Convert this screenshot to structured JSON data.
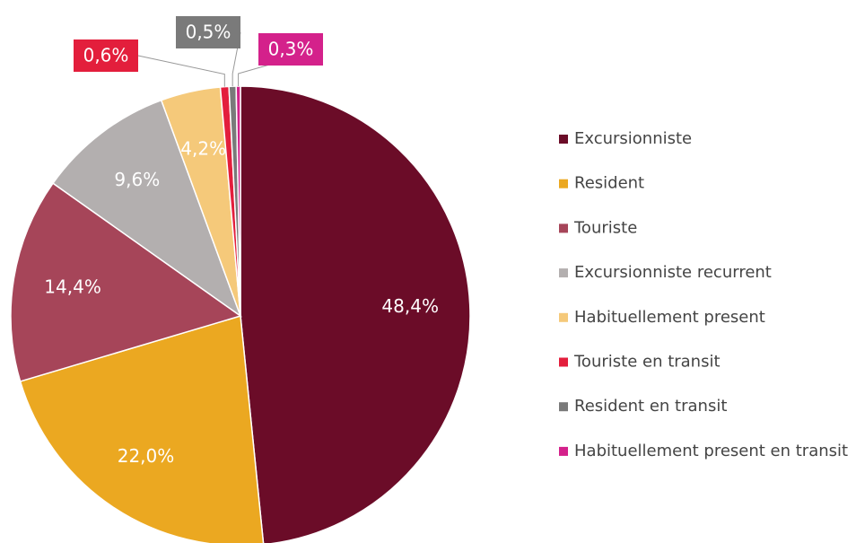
{
  "chart_data": {
    "type": "pie",
    "categories": [
      "Excursionniste",
      "Resident",
      "Touriste",
      "Excursionniste recurrent",
      "Habituellement present",
      "Touriste en transit",
      "Resident en transit",
      "Habituellement present en transit"
    ],
    "values": [
      48.4,
      22.0,
      14.4,
      9.6,
      4.2,
      0.6,
      0.5,
      0.3
    ],
    "value_labels": [
      "48,4%",
      "22,0%",
      "14,4%",
      "9,6%",
      "4,2%",
      "0,6%",
      "0,5%",
      "0,3%"
    ],
    "colors": [
      "#6b0c28",
      "#eba821",
      "#a64559",
      "#b3afaf",
      "#f5c97a",
      "#e31e3c",
      "#7a7a7a",
      "#d4218b"
    ],
    "legend": "right"
  }
}
